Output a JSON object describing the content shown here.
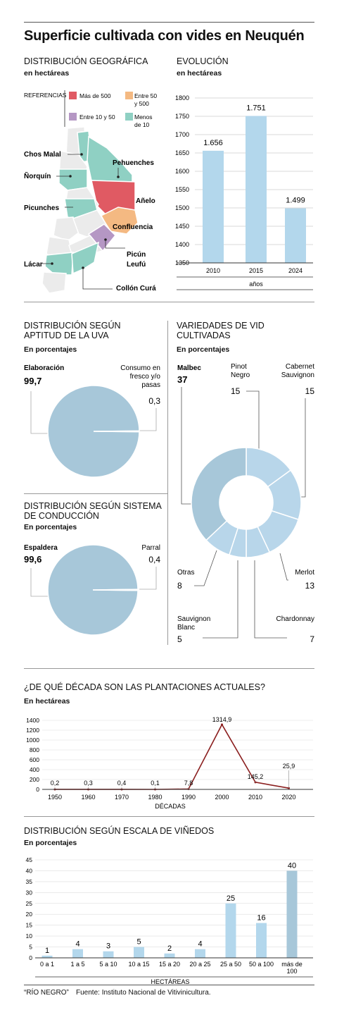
{
  "title": "Superficie cultivada con vides en Neuquén",
  "colors": {
    "bar": "#b3d7ec",
    "pie": "#a7c7d9",
    "line": "#8b1f1f",
    "red": "#e05a63",
    "orange": "#f4b982",
    "purple": "#b597c4",
    "teal": "#8fd0c3",
    "grey": "#ebebeb"
  },
  "geo": {
    "title": "DISTRIBUCIÓN GEOGRÁFICA",
    "subtitle": "en hectáreas",
    "legend_title": "REFERENCIAS",
    "legend": [
      {
        "label": "Más de 500",
        "color": "#e05a63"
      },
      {
        "label": "Entre 50 y 500",
        "color": "#f4b982"
      },
      {
        "label": "Entre 10 y 50",
        "color": "#b597c4"
      },
      {
        "label": "Menos de 10",
        "color": "#8fd0c3"
      }
    ],
    "labels": [
      "Chos Malal",
      "Pehuenches",
      "Ñorquín",
      "Añelo",
      "Picunches",
      "Confluencia",
      "Picún Leufú",
      "Lácar",
      "Collón Curá"
    ]
  },
  "chart_data": [
    {
      "type": "bar",
      "title": "EVOLUCIÓN",
      "subtitle": "en hectáreas",
      "categories": [
        "2010",
        "2015",
        "2024"
      ],
      "values": [
        1656,
        1751,
        1499
      ],
      "value_labels": [
        "1.656",
        "1.751",
        "1.499"
      ],
      "xlabel": "años",
      "ylim": [
        1350,
        1800
      ],
      "yticks": [
        "1800",
        "1750",
        "1700",
        "1650",
        "1600",
        "1550",
        "1500",
        "1450",
        "1400",
        "1350"
      ]
    },
    {
      "type": "pie",
      "title": "DISTRIBUCIÓN SEGÚN APTITUD DE LA UVA",
      "subtitle": "En porcentajes",
      "labels": [
        "Elaboración",
        "Consumo en fresco y/o pasas"
      ],
      "values": [
        99.7,
        0.3
      ],
      "value_labels": [
        "99,7",
        "0,3"
      ]
    },
    {
      "type": "pie",
      "title": "DISTRIBUCIÓN SEGÚN SISTEMA DE CONDUCCIÓN",
      "subtitle": "En porcentajes",
      "labels": [
        "Espaldera",
        "Parral"
      ],
      "values": [
        99.6,
        0.4
      ],
      "value_labels": [
        "99,6",
        "0,4"
      ]
    },
    {
      "type": "pie",
      "title": "VARIEDADES DE VID CULTIVADAS",
      "subtitle": "En porcentajes",
      "labels": [
        "Malbec",
        "Pinot Negro",
        "Cabernet Sauvignon",
        "Merlot",
        "Chardonnay",
        "Sauvignon Blanc",
        "Otras"
      ],
      "values": [
        37,
        15,
        15,
        13,
        7,
        5,
        8
      ]
    },
    {
      "type": "line",
      "title": "¿DE QUÉ DÉCADA SON LAS PLANTACIONES ACTUALES?",
      "subtitle": "En hectáreas",
      "x": [
        "1950",
        "1960",
        "1970",
        "1980",
        "1990",
        "2000",
        "2010",
        "2020"
      ],
      "y": [
        0.2,
        0.3,
        0.4,
        0.1,
        7.8,
        1314.9,
        145.2,
        25.9
      ],
      "value_labels": [
        "0,2",
        "0,3",
        "0,4",
        "0,1",
        "7,8",
        "1314,9",
        "145,2",
        "25,9"
      ],
      "xlabel": "DÉCADAS",
      "ylim": [
        0,
        1400
      ],
      "yticks": [
        "1400",
        "1200",
        "1000",
        "800",
        "600",
        "400",
        "200",
        "0"
      ]
    },
    {
      "type": "bar",
      "title": "DISTRIBUCIÓN SEGÚN ESCALA DE VIÑEDOS",
      "subtitle": "En porcentajes",
      "categories": [
        "0 a 1",
        "1 a 5",
        "5 a 10",
        "10 a 15",
        "15 a 20",
        "20 a 25",
        "25 a 50",
        "50 a 100",
        "más de 100"
      ],
      "values": [
        1,
        4,
        3,
        5,
        2,
        4,
        25,
        16,
        40
      ],
      "xlabel": "HECTÁREAS",
      "ylim": [
        0,
        45
      ],
      "yticks": [
        "45",
        "40",
        "35",
        "30",
        "25",
        "20",
        "15",
        "10",
        "5",
        "0"
      ]
    }
  ],
  "footer": {
    "source_brand": "“RÍO NEGRO”",
    "source": "Fuente: Instituto Nacional de Vitivinicultura."
  }
}
